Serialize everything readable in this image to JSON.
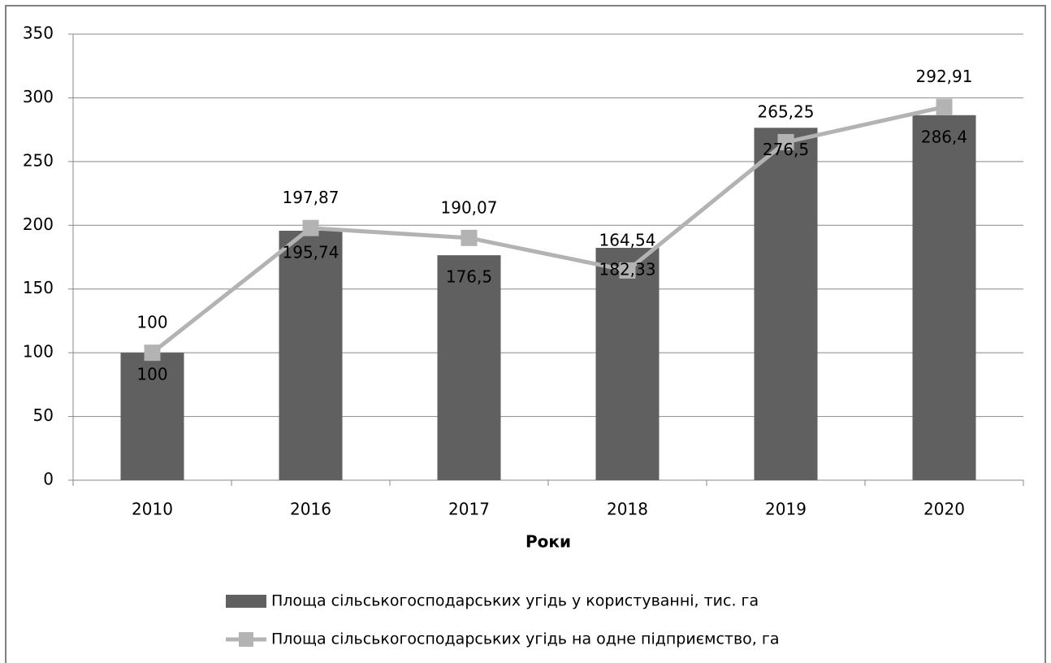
{
  "chart_data": {
    "type": "bar",
    "x_label": "Роки",
    "categories": [
      "2010",
      "2016",
      "2017",
      "2018",
      "2019",
      "2020"
    ],
    "series": [
      {
        "name": "Площа сільськогосподарських угідь у користуванні, тис.  га",
        "type": "bar",
        "color": "#606060",
        "values": [
          100,
          195.74,
          176.5,
          182.33,
          276.5,
          286.4
        ],
        "value_labels": [
          "100",
          "195,74",
          "176,5",
          "182,33",
          "276,5",
          "286,4"
        ]
      },
      {
        "name": "Площа сільськогосподарських угідь на одне підприємство, га",
        "type": "line",
        "color": "#b3b3b3",
        "values": [
          100,
          197.87,
          190.07,
          164.54,
          265.25,
          292.91
        ],
        "value_labels": [
          "100",
          "197,87",
          "190,07",
          "164,54",
          "265,25",
          "292,91"
        ]
      }
    ],
    "ylim": [
      0,
      350
    ],
    "yticks": [
      0,
      50,
      100,
      150,
      200,
      250,
      300,
      350
    ],
    "grid": true
  }
}
